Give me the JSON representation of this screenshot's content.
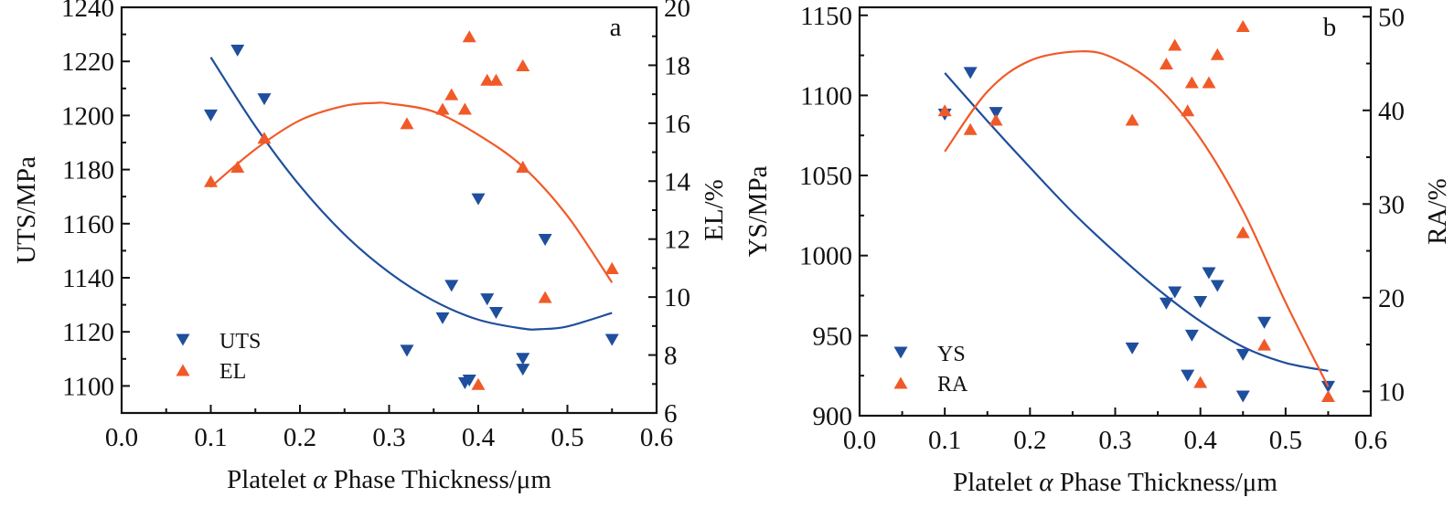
{
  "chart_data": [
    {
      "type": "scatter",
      "panel_label": "a",
      "title": "",
      "xlabel_parts": [
        "Platelet ",
        "α",
        " Phase Thickness/μm"
      ],
      "xlabel": "Platelet α Phase Thickness/μm",
      "ylabel": "UTS/MPa",
      "y2label": "EL/%",
      "xlim": [
        0.0,
        0.6
      ],
      "ylim": [
        1090,
        1240
      ],
      "y2lim": [
        6,
        20
      ],
      "xticks": [
        "0.0",
        "0.1",
        "0.2",
        "0.3",
        "0.4",
        "0.5",
        "0.6"
      ],
      "xtick_values": [
        0.0,
        0.1,
        0.2,
        0.3,
        0.4,
        0.5,
        0.6
      ],
      "yticks": [
        "1100",
        "1120",
        "1140",
        "1160",
        "1180",
        "1200",
        "1220",
        "1240"
      ],
      "ytick_values": [
        1100,
        1120,
        1140,
        1160,
        1180,
        1200,
        1220,
        1240
      ],
      "y2ticks": [
        "6",
        "8",
        "10",
        "12",
        "14",
        "16",
        "18",
        "20"
      ],
      "y2tick_values": [
        6,
        8,
        10,
        12,
        14,
        16,
        18,
        20
      ],
      "grid": false,
      "legend_position": "bottom-left",
      "series": [
        {
          "name": "UTS",
          "axis": "left",
          "marker": "triangle-down",
          "color": "#1f4e9c",
          "x": [
            0.1,
            0.13,
            0.16,
            0.32,
            0.36,
            0.37,
            0.385,
            0.39,
            0.4,
            0.41,
            0.42,
            0.45,
            0.45,
            0.475,
            0.55
          ],
          "y": [
            1200,
            1224,
            1206,
            1113,
            1125,
            1137,
            1101,
            1102,
            1169,
            1132,
            1127,
            1110,
            1106,
            1154,
            1117
          ],
          "fit": {
            "kind": "polynomial",
            "x": [
              0.1,
              0.15,
              0.2,
              0.25,
              0.3,
              0.35,
              0.4,
              0.45,
              0.47,
              0.5,
              0.55
            ],
            "y": [
              1221.5,
              1196,
              1174,
              1156,
              1142,
              1131.5,
              1124.5,
              1121.2,
              1121,
              1122,
              1127
            ]
          }
        },
        {
          "name": "EL",
          "axis": "right",
          "marker": "triangle-up",
          "color": "#f05a28",
          "x": [
            0.1,
            0.13,
            0.16,
            0.32,
            0.36,
            0.37,
            0.385,
            0.39,
            0.4,
            0.41,
            0.42,
            0.45,
            0.45,
            0.475,
            0.55
          ],
          "y": [
            14.0,
            14.5,
            15.5,
            16.0,
            16.5,
            17.0,
            16.5,
            19.0,
            7.0,
            17.5,
            17.5,
            18.0,
            14.5,
            10.0,
            11.0
          ],
          "fit": {
            "kind": "polynomial",
            "x": [
              0.1,
              0.15,
              0.2,
              0.25,
              0.285,
              0.3,
              0.35,
              0.4,
              0.45,
              0.5,
              0.55
            ],
            "y": [
              13.8,
              15.1,
              16.1,
              16.6,
              16.7,
              16.68,
              16.4,
              15.6,
              14.5,
              12.8,
              10.5
            ]
          }
        }
      ]
    },
    {
      "type": "scatter",
      "panel_label": "b",
      "title": "",
      "xlabel_parts": [
        "Platelet ",
        "α",
        " Phase Thickness/μm"
      ],
      "xlabel": "Platelet α Phase Thickness/μm",
      "ylabel": "YS/MPa",
      "y2label": "RA/%",
      "xlim": [
        0.0,
        0.6
      ],
      "ylim": [
        900,
        1155
      ],
      "y2lim": [
        7.4,
        51
      ],
      "xticks": [
        "0.0",
        "0.1",
        "0.2",
        "0.3",
        "0.4",
        "0.5",
        "0.6"
      ],
      "xtick_values": [
        0.0,
        0.1,
        0.2,
        0.3,
        0.4,
        0.5,
        0.6
      ],
      "yticks": [
        "900",
        "950",
        "1000",
        "1050",
        "1100",
        "1150"
      ],
      "ytick_values": [
        900,
        950,
        1000,
        1050,
        1100,
        1150
      ],
      "y2ticks": [
        "10",
        "20",
        "30",
        "40",
        "50"
      ],
      "y2tick_values": [
        10,
        20,
        30,
        40,
        50
      ],
      "grid": false,
      "legend_position": "bottom-left",
      "series": [
        {
          "name": "YS",
          "axis": "left",
          "marker": "triangle-down",
          "color": "#1f4e9c",
          "x": [
            0.1,
            0.13,
            0.16,
            0.32,
            0.36,
            0.37,
            0.385,
            0.39,
            0.4,
            0.41,
            0.42,
            0.45,
            0.45,
            0.475,
            0.55
          ],
          "y": [
            1088,
            1114,
            1089,
            942,
            970,
            977,
            925,
            950,
            971,
            989,
            981,
            938,
            912,
            958,
            918
          ],
          "fit": {
            "kind": "polynomial",
            "x": [
              0.1,
              0.15,
              0.2,
              0.25,
              0.3,
              0.35,
              0.4,
              0.45,
              0.5,
              0.55
            ],
            "y": [
              1114,
              1084,
              1055,
              1027,
              1002,
              979,
              959,
              943,
              933,
              928
            ]
          }
        },
        {
          "name": "RA",
          "axis": "right",
          "marker": "triangle-up",
          "color": "#f05a28",
          "x": [
            0.1,
            0.13,
            0.16,
            0.32,
            0.36,
            0.37,
            0.385,
            0.39,
            0.4,
            0.41,
            0.42,
            0.45,
            0.45,
            0.475,
            0.55
          ],
          "y": [
            40,
            38,
            39,
            39,
            45,
            47,
            40,
            43,
            11,
            43,
            46,
            49,
            27,
            15,
            9.5
          ],
          "fit": {
            "kind": "polynomial",
            "x": [
              0.1,
              0.15,
              0.2,
              0.26,
              0.3,
              0.35,
              0.4,
              0.45,
              0.5,
              0.55
            ],
            "y": [
              35.6,
              42.0,
              45.3,
              46.3,
              45.5,
              42.5,
              37.0,
              29.3,
              19.5,
              10.5
            ]
          }
        }
      ]
    }
  ]
}
